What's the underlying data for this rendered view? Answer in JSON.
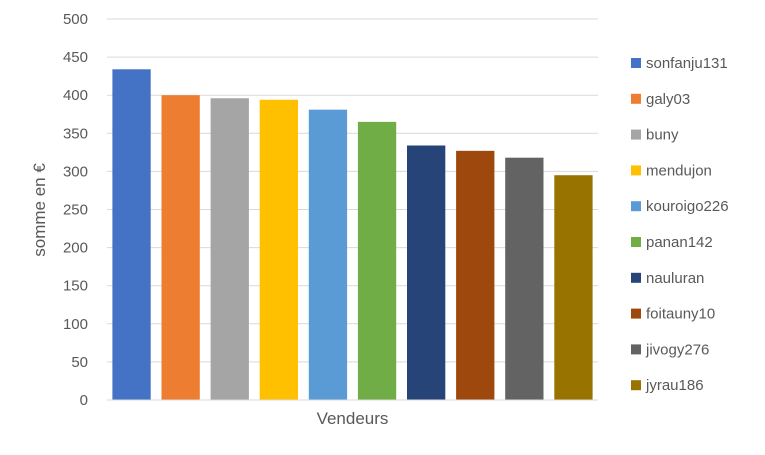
{
  "chart_data": {
    "type": "bar",
    "title": "",
    "xlabel": "Vendeurs",
    "ylabel": "somme en €",
    "ylim": [
      0,
      500
    ],
    "yticks": [
      0,
      50,
      100,
      150,
      200,
      250,
      300,
      350,
      400,
      450,
      500
    ],
    "grid": true,
    "legend_position": "right",
    "series": [
      {
        "name": "sonfanju131",
        "value": 434,
        "color": "#4472C4"
      },
      {
        "name": "galy03",
        "value": 400,
        "color": "#ED7D31"
      },
      {
        "name": "buny",
        "value": 396,
        "color": "#A5A5A5"
      },
      {
        "name": "mendujon",
        "value": 394,
        "color": "#FFC000"
      },
      {
        "name": "kouroigo226",
        "value": 381,
        "color": "#5B9BD5"
      },
      {
        "name": "panan142",
        "value": 365,
        "color": "#70AD47"
      },
      {
        "name": "nauluran",
        "value": 334,
        "color": "#264478"
      },
      {
        "name": "foitauny10",
        "value": 327,
        "color": "#9E480E"
      },
      {
        "name": "jivogy276",
        "value": 318,
        "color": "#636363"
      },
      {
        "name": "jyrau186",
        "value": 295,
        "color": "#997300"
      }
    ]
  }
}
